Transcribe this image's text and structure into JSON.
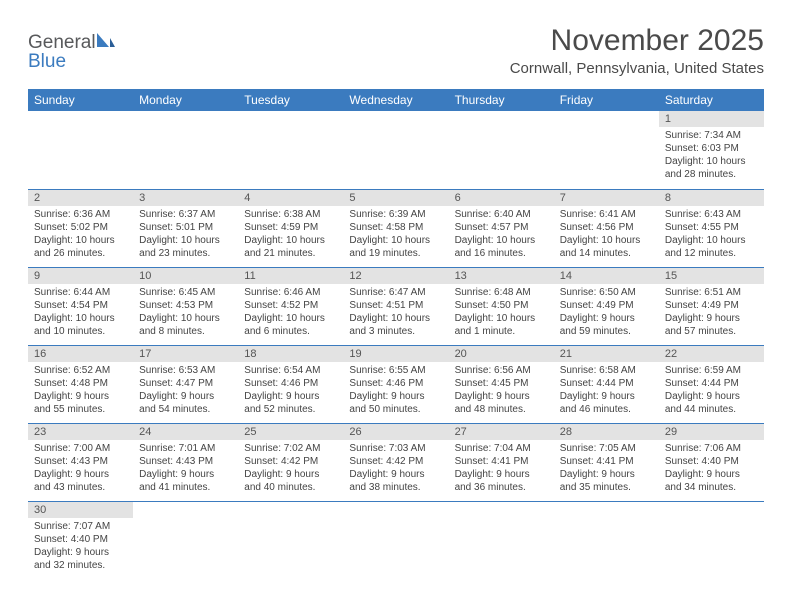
{
  "brand": {
    "name1": "General",
    "name2": "Blue"
  },
  "title": "November 2025",
  "location": "Cornwall, Pennsylvania, United States",
  "colors": {
    "accent": "#3b7bbf",
    "headerText": "#ffffff",
    "dayStrip": "#e3e3e3",
    "body": "#444444"
  },
  "weekdays": [
    "Sunday",
    "Monday",
    "Tuesday",
    "Wednesday",
    "Thursday",
    "Friday",
    "Saturday"
  ],
  "weeks": [
    [
      null,
      null,
      null,
      null,
      null,
      null,
      {
        "n": "1",
        "sr": "Sunrise: 7:34 AM",
        "ss": "Sunset: 6:03 PM",
        "dl": "Daylight: 10 hours and 28 minutes."
      }
    ],
    [
      {
        "n": "2",
        "sr": "Sunrise: 6:36 AM",
        "ss": "Sunset: 5:02 PM",
        "dl": "Daylight: 10 hours and 26 minutes."
      },
      {
        "n": "3",
        "sr": "Sunrise: 6:37 AM",
        "ss": "Sunset: 5:01 PM",
        "dl": "Daylight: 10 hours and 23 minutes."
      },
      {
        "n": "4",
        "sr": "Sunrise: 6:38 AM",
        "ss": "Sunset: 4:59 PM",
        "dl": "Daylight: 10 hours and 21 minutes."
      },
      {
        "n": "5",
        "sr": "Sunrise: 6:39 AM",
        "ss": "Sunset: 4:58 PM",
        "dl": "Daylight: 10 hours and 19 minutes."
      },
      {
        "n": "6",
        "sr": "Sunrise: 6:40 AM",
        "ss": "Sunset: 4:57 PM",
        "dl": "Daylight: 10 hours and 16 minutes."
      },
      {
        "n": "7",
        "sr": "Sunrise: 6:41 AM",
        "ss": "Sunset: 4:56 PM",
        "dl": "Daylight: 10 hours and 14 minutes."
      },
      {
        "n": "8",
        "sr": "Sunrise: 6:43 AM",
        "ss": "Sunset: 4:55 PM",
        "dl": "Daylight: 10 hours and 12 minutes."
      }
    ],
    [
      {
        "n": "9",
        "sr": "Sunrise: 6:44 AM",
        "ss": "Sunset: 4:54 PM",
        "dl": "Daylight: 10 hours and 10 minutes."
      },
      {
        "n": "10",
        "sr": "Sunrise: 6:45 AM",
        "ss": "Sunset: 4:53 PM",
        "dl": "Daylight: 10 hours and 8 minutes."
      },
      {
        "n": "11",
        "sr": "Sunrise: 6:46 AM",
        "ss": "Sunset: 4:52 PM",
        "dl": "Daylight: 10 hours and 6 minutes."
      },
      {
        "n": "12",
        "sr": "Sunrise: 6:47 AM",
        "ss": "Sunset: 4:51 PM",
        "dl": "Daylight: 10 hours and 3 minutes."
      },
      {
        "n": "13",
        "sr": "Sunrise: 6:48 AM",
        "ss": "Sunset: 4:50 PM",
        "dl": "Daylight: 10 hours and 1 minute."
      },
      {
        "n": "14",
        "sr": "Sunrise: 6:50 AM",
        "ss": "Sunset: 4:49 PM",
        "dl": "Daylight: 9 hours and 59 minutes."
      },
      {
        "n": "15",
        "sr": "Sunrise: 6:51 AM",
        "ss": "Sunset: 4:49 PM",
        "dl": "Daylight: 9 hours and 57 minutes."
      }
    ],
    [
      {
        "n": "16",
        "sr": "Sunrise: 6:52 AM",
        "ss": "Sunset: 4:48 PM",
        "dl": "Daylight: 9 hours and 55 minutes."
      },
      {
        "n": "17",
        "sr": "Sunrise: 6:53 AM",
        "ss": "Sunset: 4:47 PM",
        "dl": "Daylight: 9 hours and 54 minutes."
      },
      {
        "n": "18",
        "sr": "Sunrise: 6:54 AM",
        "ss": "Sunset: 4:46 PM",
        "dl": "Daylight: 9 hours and 52 minutes."
      },
      {
        "n": "19",
        "sr": "Sunrise: 6:55 AM",
        "ss": "Sunset: 4:46 PM",
        "dl": "Daylight: 9 hours and 50 minutes."
      },
      {
        "n": "20",
        "sr": "Sunrise: 6:56 AM",
        "ss": "Sunset: 4:45 PM",
        "dl": "Daylight: 9 hours and 48 minutes."
      },
      {
        "n": "21",
        "sr": "Sunrise: 6:58 AM",
        "ss": "Sunset: 4:44 PM",
        "dl": "Daylight: 9 hours and 46 minutes."
      },
      {
        "n": "22",
        "sr": "Sunrise: 6:59 AM",
        "ss": "Sunset: 4:44 PM",
        "dl": "Daylight: 9 hours and 44 minutes."
      }
    ],
    [
      {
        "n": "23",
        "sr": "Sunrise: 7:00 AM",
        "ss": "Sunset: 4:43 PM",
        "dl": "Daylight: 9 hours and 43 minutes."
      },
      {
        "n": "24",
        "sr": "Sunrise: 7:01 AM",
        "ss": "Sunset: 4:43 PM",
        "dl": "Daylight: 9 hours and 41 minutes."
      },
      {
        "n": "25",
        "sr": "Sunrise: 7:02 AM",
        "ss": "Sunset: 4:42 PM",
        "dl": "Daylight: 9 hours and 40 minutes."
      },
      {
        "n": "26",
        "sr": "Sunrise: 7:03 AM",
        "ss": "Sunset: 4:42 PM",
        "dl": "Daylight: 9 hours and 38 minutes."
      },
      {
        "n": "27",
        "sr": "Sunrise: 7:04 AM",
        "ss": "Sunset: 4:41 PM",
        "dl": "Daylight: 9 hours and 36 minutes."
      },
      {
        "n": "28",
        "sr": "Sunrise: 7:05 AM",
        "ss": "Sunset: 4:41 PM",
        "dl": "Daylight: 9 hours and 35 minutes."
      },
      {
        "n": "29",
        "sr": "Sunrise: 7:06 AM",
        "ss": "Sunset: 4:40 PM",
        "dl": "Daylight: 9 hours and 34 minutes."
      }
    ],
    [
      {
        "n": "30",
        "sr": "Sunrise: 7:07 AM",
        "ss": "Sunset: 4:40 PM",
        "dl": "Daylight: 9 hours and 32 minutes."
      },
      null,
      null,
      null,
      null,
      null,
      null
    ]
  ]
}
